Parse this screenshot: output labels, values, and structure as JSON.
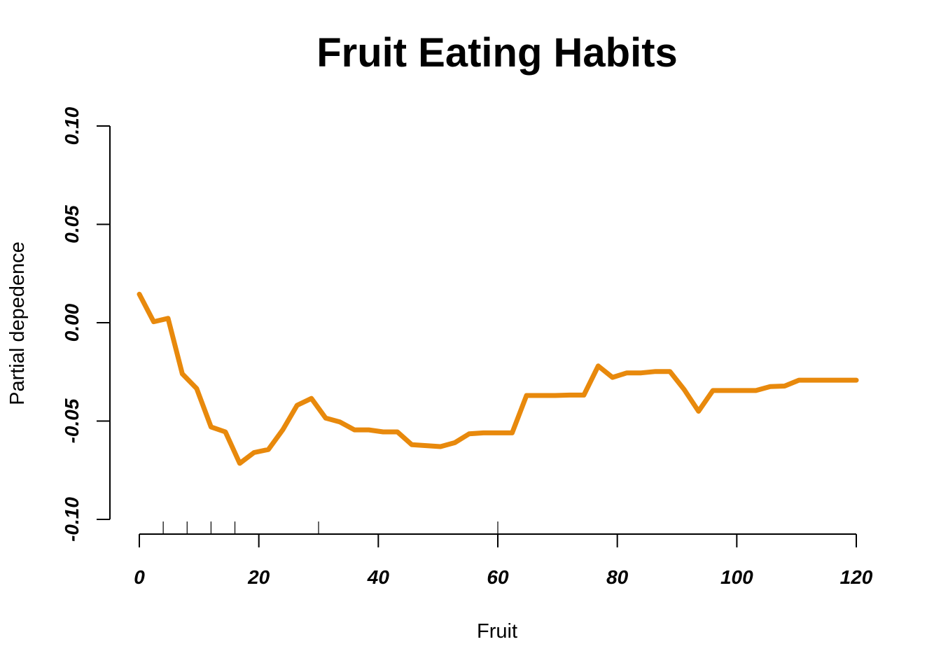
{
  "chart_data": {
    "type": "line",
    "title": "Fruit Eating Habits",
    "xlabel": "Fruit",
    "ylabel": "Partial depedence",
    "xlim": [
      0,
      120
    ],
    "ylim": [
      -0.1,
      0.1
    ],
    "x_ticks": [
      "0",
      "20",
      "40",
      "60",
      "80",
      "100",
      "120"
    ],
    "x_tick_values": [
      0,
      20,
      40,
      60,
      80,
      100,
      120
    ],
    "y_ticks": [
      "-0.10",
      "-0.05",
      "0.00",
      "0.05",
      "0.10"
    ],
    "y_tick_values": [
      -0.1,
      -0.05,
      0.0,
      0.05,
      0.1
    ],
    "grid": false,
    "line_color": "#E8890C",
    "rug_values": [
      4,
      8,
      12,
      16,
      30,
      60
    ],
    "series": [
      {
        "x": [
          0,
          2.4,
          4.8,
          7.2,
          9.6,
          12.0,
          14.4,
          16.8,
          19.2,
          21.6,
          24.0,
          26.4,
          28.8,
          31.2,
          33.6,
          36.0,
          38.4,
          40.8,
          43.2,
          45.6,
          48.0,
          50.4,
          52.8,
          55.2,
          57.6,
          60.0,
          62.4,
          64.8,
          67.2,
          69.6,
          72.0,
          74.4,
          76.8,
          79.2,
          81.6,
          84.0,
          86.4,
          88.8,
          91.2,
          93.6,
          96.0,
          98.4,
          100.8,
          103.2,
          105.6,
          108.0,
          110.4,
          112.8,
          115.2,
          117.6,
          120.0
        ],
        "y": [
          0.0145,
          0.0005,
          0.0022,
          -0.026,
          -0.0335,
          -0.053,
          -0.0555,
          -0.0715,
          -0.066,
          -0.0645,
          -0.0545,
          -0.042,
          -0.0385,
          -0.0485,
          -0.0505,
          -0.0545,
          -0.0545,
          -0.0555,
          -0.0555,
          -0.062,
          -0.0625,
          -0.063,
          -0.061,
          -0.0565,
          -0.056,
          -0.056,
          -0.056,
          -0.037,
          -0.037,
          -0.037,
          -0.0368,
          -0.0368,
          -0.022,
          -0.0278,
          -0.0255,
          -0.0255,
          -0.0248,
          -0.0248,
          -0.034,
          -0.045,
          -0.0345,
          -0.0345,
          -0.0345,
          -0.0345,
          -0.0325,
          -0.0322,
          -0.0292,
          -0.0292,
          -0.0292,
          -0.0292,
          -0.0292
        ]
      }
    ]
  }
}
